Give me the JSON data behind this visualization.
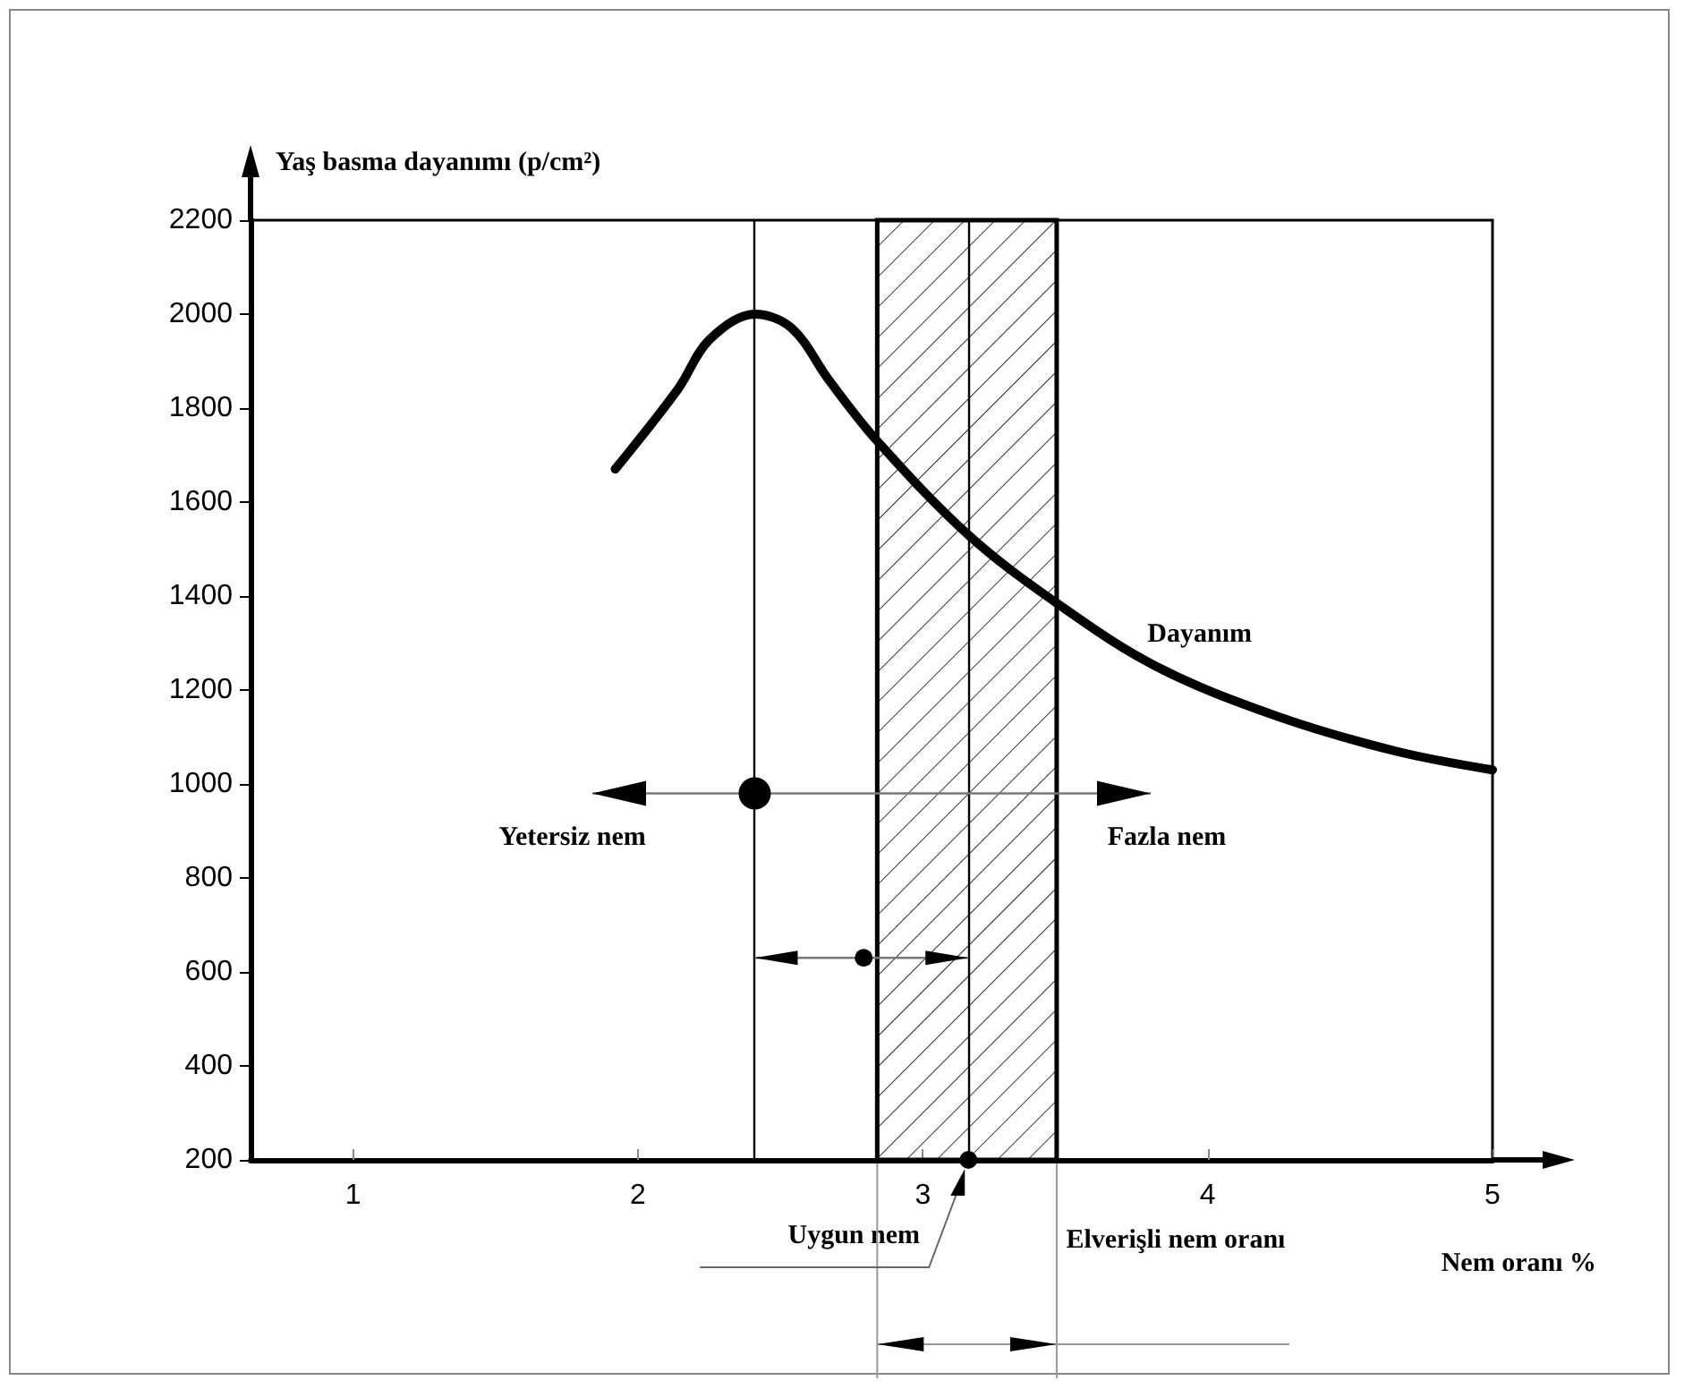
{
  "chart_data": {
    "type": "line",
    "xlabel": "Nem oranı %",
    "ylabel": "Yaş basma dayanımı (p/cm²)",
    "x": [
      1.92,
      2.14,
      2.25,
      2.41,
      2.54,
      2.67,
      2.84,
      3.16,
      3.47,
      3.82,
      4.24,
      4.66,
      5.0
    ],
    "series": [
      {
        "name": "Dayanım",
        "color": "#000000",
        "values": [
          1670,
          1840,
          1945,
          2000,
          1970,
          1860,
          1730,
          1530,
          1385,
          1250,
          1145,
          1070,
          1030
        ]
      }
    ],
    "xlim": [
      0.64,
      5
    ],
    "xticks": [
      1,
      2,
      3,
      4,
      5
    ],
    "ylim": [
      200,
      2200
    ],
    "yticks": [
      200,
      400,
      600,
      800,
      1000,
      1200,
      1400,
      1600,
      1800,
      2000,
      2200
    ],
    "ref_lines": [
      {
        "axis": "x",
        "value": 3.16,
        "label": "Uygun nem"
      },
      {
        "axis": "x",
        "value": 2.41,
        "label": null
      }
    ],
    "bands": [
      {
        "axis": "x",
        "from": 2.84,
        "to": 3.47,
        "label": "Elverişli nem oranı",
        "color": "#000000"
      }
    ],
    "annotations": [
      "Yetersiz nem",
      "Fazla nem"
    ],
    "grid": false,
    "legend": false,
    "marker": "none",
    "line_style": "solid"
  }
}
